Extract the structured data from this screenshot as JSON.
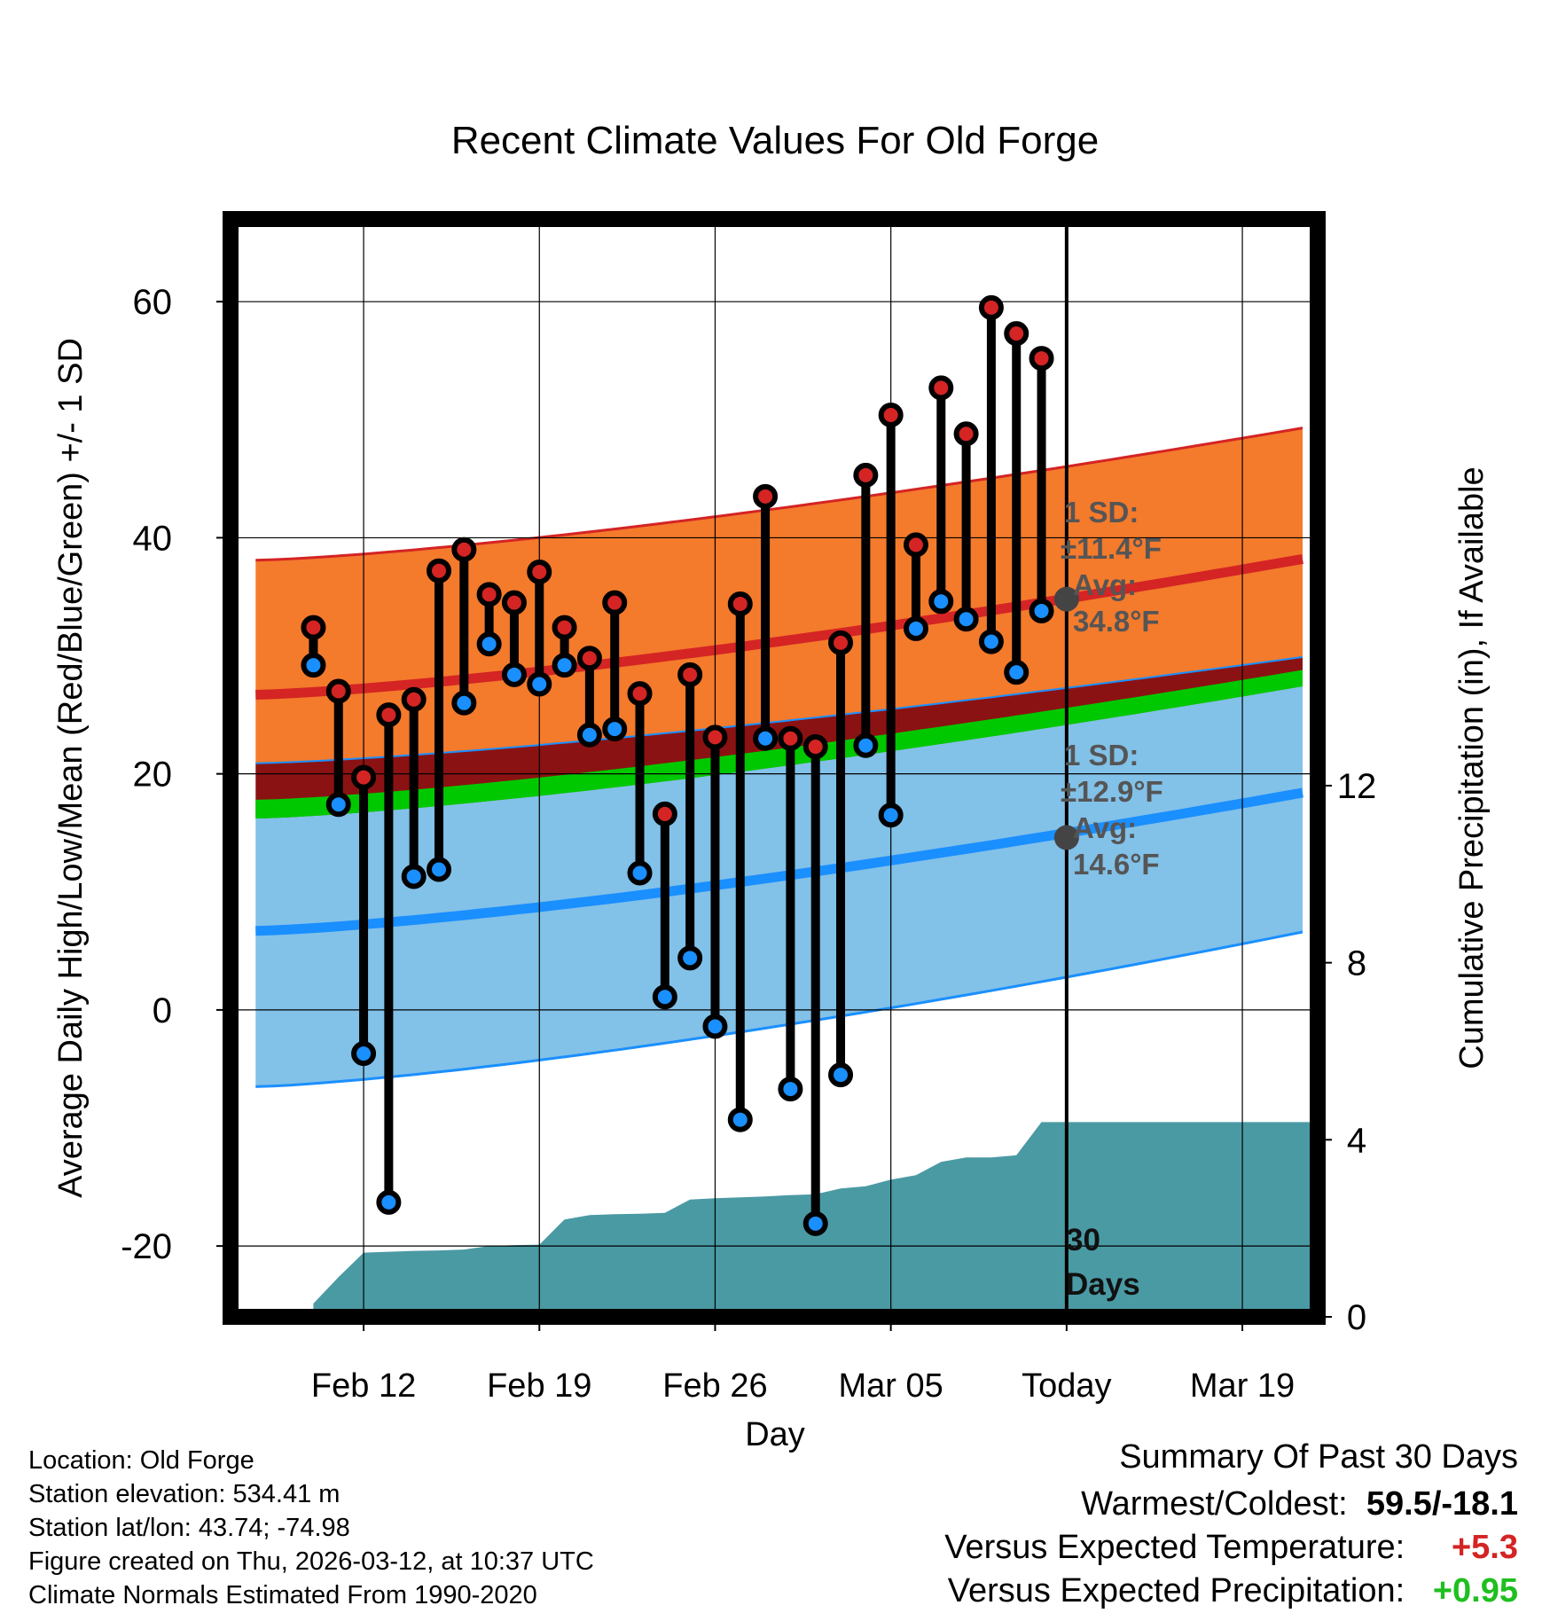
{
  "chart_data": {
    "type": "line",
    "title": "Recent Climate Values For Old Forge",
    "xlabel": "Day",
    "ylabel": "Average Daily High/Low/Mean (Red/Blue/Green) +/- 1 SD",
    "y2label": "Cumulative Precipitation (in), If Available",
    "ylim": [
      -26,
      67
    ],
    "y2lim": [
      0,
      24.8
    ],
    "x_range_days": [
      -33.3,
      10
    ],
    "x_ticks": [
      {
        "day": -28,
        "label": "Feb 12"
      },
      {
        "day": -21,
        "label": "Feb 19"
      },
      {
        "day": -14,
        "label": "Feb 26"
      },
      {
        "day": -7,
        "label": "Mar 05"
      },
      {
        "day": 0,
        "label": "Today"
      },
      {
        "day": 7,
        "label": "Mar 19"
      }
    ],
    "y_ticks": [
      60,
      40,
      20,
      0,
      -20
    ],
    "y2_ticks": [
      12,
      8,
      4,
      0
    ],
    "today_annotation": [
      "30",
      "Days"
    ],
    "daily_high": [
      32.4,
      27.0,
      19.7,
      25.0,
      26.3,
      37.2,
      39.0,
      35.2,
      34.5,
      37.1,
      32.4,
      29.8,
      34.5,
      26.8,
      16.6,
      28.4,
      23.1,
      34.4,
      43.5,
      23.0,
      22.3,
      31.1,
      45.3,
      50.4,
      39.4,
      52.7,
      48.8,
      59.5,
      57.3,
      55.2
    ],
    "daily_low": [
      29.2,
      17.4,
      -3.7,
      -16.3,
      11.3,
      11.9,
      26.0,
      31.0,
      28.4,
      27.6,
      29.2,
      23.3,
      23.8,
      11.6,
      1.1,
      4.4,
      -1.4,
      -9.3,
      23.0,
      -6.7,
      -18.1,
      -5.5,
      22.4,
      16.5,
      32.3,
      34.6,
      33.1,
      31.2,
      28.6,
      33.8
    ],
    "normal_high": {
      "avg_start": 26.7,
      "avg_end": 38.2,
      "upper_start": 38.1,
      "upper_end": 49.3,
      "lower_start": 20.9,
      "lower_end": 29.9,
      "today_avg": 34.8
    },
    "normal_low": {
      "avg_start": 6.7,
      "avg_end": 18.4,
      "upper_start": 16.2,
      "upper_end": 27.4,
      "lower_start": -6.5,
      "lower_end": 6.6,
      "today_avg": 14.6
    },
    "normal_mean": {
      "lower_start": 16.2,
      "lower_end": 27.4,
      "upper_start": 17.8,
      "upper_end": 28.8
    },
    "cumulative_precip": [
      {
        "day": -30,
        "value": 0.3
      },
      {
        "day": -29,
        "value": 0.9
      },
      {
        "day": -28,
        "value": 1.45
      },
      {
        "day": -27,
        "value": 1.47
      },
      {
        "day": -26,
        "value": 1.49
      },
      {
        "day": -25,
        "value": 1.5
      },
      {
        "day": -24,
        "value": 1.52
      },
      {
        "day": -23,
        "value": 1.6
      },
      {
        "day": -22,
        "value": 1.62
      },
      {
        "day": -21,
        "value": 1.63
      },
      {
        "day": -20,
        "value": 2.2
      },
      {
        "day": -19,
        "value": 2.3
      },
      {
        "day": -18,
        "value": 2.32
      },
      {
        "day": -17,
        "value": 2.33
      },
      {
        "day": -16,
        "value": 2.35
      },
      {
        "day": -15,
        "value": 2.65
      },
      {
        "day": -14,
        "value": 2.68
      },
      {
        "day": -13,
        "value": 2.7
      },
      {
        "day": -12,
        "value": 2.72
      },
      {
        "day": -11,
        "value": 2.75
      },
      {
        "day": -10,
        "value": 2.77
      },
      {
        "day": -9,
        "value": 2.9
      },
      {
        "day": -8,
        "value": 2.95
      },
      {
        "day": -7,
        "value": 3.1
      },
      {
        "day": -6,
        "value": 3.2
      },
      {
        "day": -5,
        "value": 3.5
      },
      {
        "day": -4,
        "value": 3.6
      },
      {
        "day": -3,
        "value": 3.6
      },
      {
        "day": -2,
        "value": 3.65
      },
      {
        "day": -1,
        "value": 4.4
      },
      {
        "day": 0,
        "value": 4.4
      },
      {
        "day": 10,
        "value": 4.4
      }
    ],
    "colors": {
      "high_band": "#f47a2c",
      "high_line": "#d42424",
      "low_band": "#82c1e8",
      "low_line": "#1a8fff",
      "mean_band": "#00c800",
      "overlap_band": "#8b1212",
      "precip_fill": "#4a9aa4",
      "high_marker": "#d42424",
      "low_marker": "#1a8fff",
      "avg_marker": "#444444",
      "annotation": "#555555"
    },
    "annotations": {
      "high": {
        "line1": "1 SD:",
        "line2": "±11.4°F",
        "line3": "Avg:",
        "line4": "34.8°F"
      },
      "low": {
        "line1": "1 SD:",
        "line2": "±12.9°F",
        "line3": "Avg:",
        "line4": "14.6°F"
      }
    }
  },
  "footer": {
    "location": "Location: Old Forge",
    "elevation": "Station elevation: 534.41 m",
    "latlon": "Station lat/lon: 43.74; -74.98",
    "created": "Figure created on Thu, 2026-03-12, at 10:37 UTC",
    "normals": "Climate Normals Estimated From 1990-2020"
  },
  "summary": {
    "title": "Summary Of Past 30 Days",
    "warmest_label": "Warmest/Coldest:",
    "warmest_value": "59.5/-18.1",
    "temp_label": "Versus Expected Temperature:",
    "temp_value": "+5.3",
    "precip_label": "Versus Expected Precipitation:",
    "precip_value": "+0.95",
    "temp_color": "#d42424",
    "precip_color": "#1fbf1f"
  }
}
